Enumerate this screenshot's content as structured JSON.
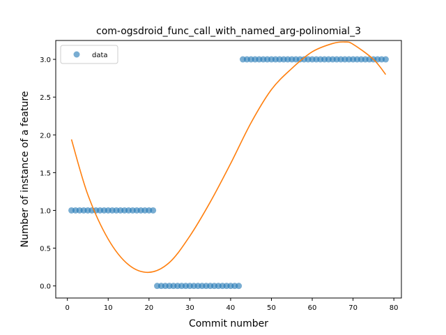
{
  "chart_data": {
    "type": "scatter",
    "title": "com-ogsdroid_func_call_with_named_arg-polinomial_3",
    "xlabel": "Commit number",
    "ylabel": "Number of instance of a feature",
    "xlim": [
      -2.85,
      81.85
    ],
    "ylim": [
      -0.16,
      3.25
    ],
    "x_ticks": [
      0,
      10,
      20,
      30,
      40,
      50,
      60,
      70,
      80
    ],
    "y_ticks": [
      0.0,
      0.5,
      1.0,
      1.5,
      2.0,
      2.5,
      3.0
    ],
    "x_tick_labels": [
      "0",
      "10",
      "20",
      "30",
      "40",
      "50",
      "60",
      "70",
      "80"
    ],
    "y_tick_labels": [
      "0.0",
      "0.5",
      "1.0",
      "1.5",
      "2.0",
      "2.5",
      "3.0"
    ],
    "grid": false,
    "legend": {
      "position": "upper-left",
      "entries": [
        "data"
      ]
    },
    "series": [
      {
        "name": "data",
        "kind": "scatter",
        "color": "#1f77b4",
        "x": [
          1,
          2,
          3,
          4,
          5,
          6,
          7,
          8,
          9,
          10,
          11,
          12,
          13,
          14,
          15,
          16,
          17,
          18,
          19,
          20,
          21,
          22,
          23,
          24,
          25,
          26,
          27,
          28,
          29,
          30,
          31,
          32,
          33,
          34,
          35,
          36,
          37,
          38,
          39,
          40,
          41,
          42,
          43,
          44,
          45,
          46,
          47,
          48,
          49,
          50,
          51,
          52,
          53,
          54,
          55,
          56,
          57,
          58,
          59,
          60,
          61,
          62,
          63,
          64,
          65,
          66,
          67,
          68,
          69,
          70,
          71,
          72,
          73,
          74,
          75,
          76,
          77,
          78
        ],
        "y": [
          1,
          1,
          1,
          1,
          1,
          1,
          1,
          1,
          1,
          1,
          1,
          1,
          1,
          1,
          1,
          1,
          1,
          1,
          1,
          1,
          1,
          0,
          0,
          0,
          0,
          0,
          0,
          0,
          0,
          0,
          0,
          0,
          0,
          0,
          0,
          0,
          0,
          0,
          0,
          0,
          0,
          0,
          3,
          3,
          3,
          3,
          3,
          3,
          3,
          3,
          3,
          3,
          3,
          3,
          3,
          3,
          3,
          3,
          3,
          3,
          3,
          3,
          3,
          3,
          3,
          3,
          3,
          3,
          3,
          3,
          3,
          3,
          3,
          3,
          3,
          3,
          3,
          3
        ]
      },
      {
        "name": "",
        "kind": "line",
        "color": "#ff7f0e",
        "x": [
          1,
          5,
          10,
          15,
          20,
          25,
          30,
          35,
          40,
          45,
          50,
          55,
          60,
          65,
          68,
          70,
          75,
          78
        ],
        "y": [
          1.94,
          1.21,
          0.62,
          0.28,
          0.18,
          0.31,
          0.66,
          1.11,
          1.62,
          2.16,
          2.6,
          2.88,
          3.1,
          3.21,
          3.23,
          3.2,
          3.0,
          2.8
        ]
      }
    ]
  }
}
